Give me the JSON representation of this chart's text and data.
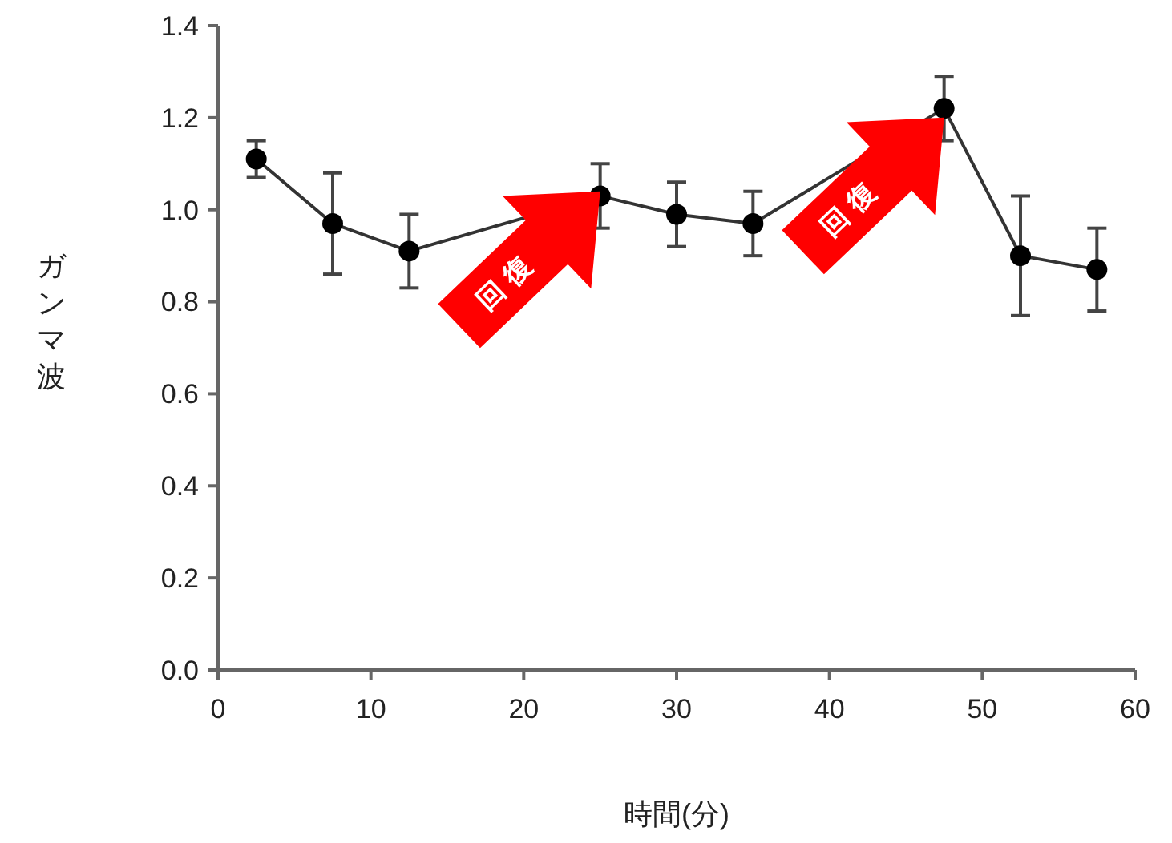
{
  "chart_data": {
    "type": "line",
    "xlabel": "時間(分)",
    "ylabel": "ガンマ波",
    "x": [
      2.5,
      7.5,
      12.5,
      25,
      30,
      35,
      47.5,
      52.5,
      57.5
    ],
    "series": [
      {
        "color": "#000000",
        "values": [
          1.11,
          0.97,
          0.91,
          1.03,
          0.99,
          0.97,
          1.22,
          0.9,
          0.87
        ],
        "errors": [
          0.04,
          0.11,
          0.08,
          0.07,
          0.07,
          0.07,
          0.07,
          0.13,
          0.09
        ]
      }
    ],
    "xlim": [
      0,
      60
    ],
    "xticks": [
      0,
      10,
      20,
      30,
      40,
      50,
      60
    ],
    "ylim": [
      0,
      1.4
    ],
    "yticks": [
      {
        "value": 0,
        "label": "0.0"
      },
      0.2,
      0.4,
      0.6,
      0.8,
      {
        "value": 1,
        "label": "1.0"
      },
      1.2,
      1.4
    ],
    "marker": "circle",
    "line_style": "solid",
    "grid": false,
    "annotations": [
      {
        "text": "回復",
        "x": 25,
        "y": 1.04
      },
      {
        "text": "回復",
        "x": 47.5,
        "y": 1.2
      }
    ]
  }
}
